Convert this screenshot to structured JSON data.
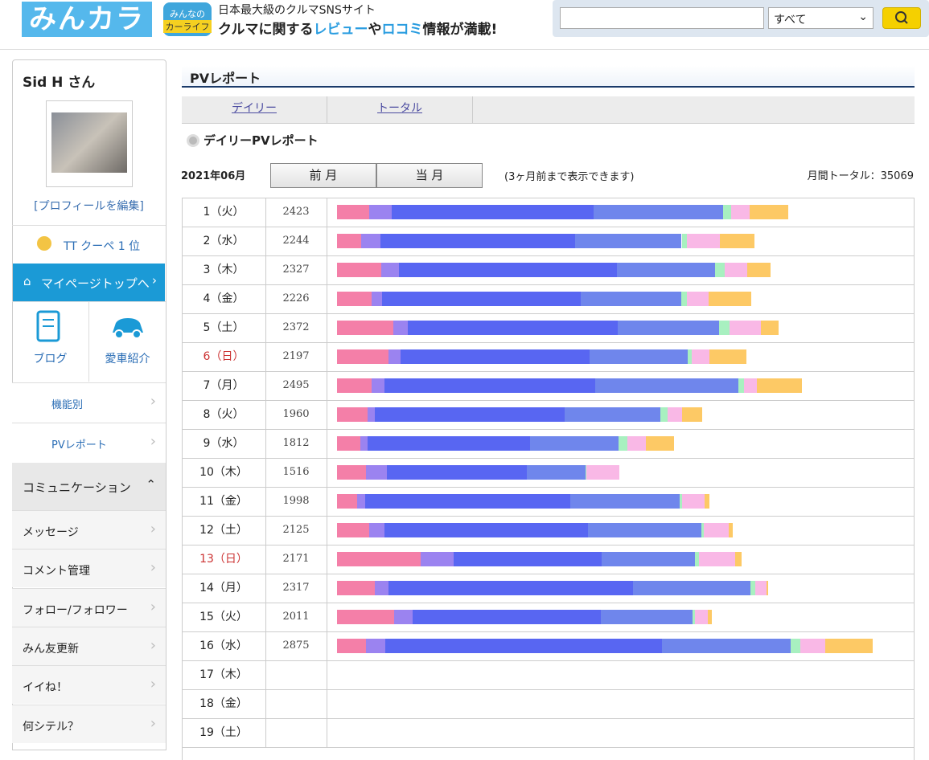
{
  "header": {
    "logo": "みんカラ",
    "badge": [
      "みんなの",
      "カーライフ"
    ],
    "tagline": "日本最大級のクルマSNSサイト",
    "slogan": [
      {
        "text": "クルマに関する",
        "color": "#222"
      },
      {
        "text": "レビュー",
        "color": "#2a9de0"
      },
      {
        "text": "や",
        "color": "#222"
      },
      {
        "text": "ロコミ",
        "color": "#2a9de0"
      },
      {
        "text": "情報が満載!",
        "color": "#222"
      }
    ],
    "search_option": "すべて"
  },
  "sidebar": {
    "user": "Sid H さん",
    "edit_profile": "[プロフィールを編集]",
    "ranking": "TT クーペ 1 位",
    "mypage": "マイページトップへ",
    "tiles": [
      "ブログ",
      "愛車紹介"
    ],
    "menu": [
      "機能別",
      "PVレポート"
    ],
    "section": "コミュニケーション",
    "items": [
      "メッセージ",
      "コメント管理",
      "フォロー/フォロワー",
      "みん友更新",
      "イイね！",
      "何シテル？"
    ]
  },
  "main": {
    "title": "PVレポート",
    "tabs": [
      "デイリー",
      "トータル"
    ],
    "subtitle": "デイリーPVレポート",
    "month": "2021年06月",
    "buttons": [
      "前 月",
      "当 月"
    ],
    "note": "(3ヶ月前まで表示できます)",
    "total_label": "月間トータル：",
    "total": 35069,
    "segment_colors": [
      "#f47fa8",
      "#9b83f0",
      "#5866f2",
      "#6f86ec",
      "#a8f0c0",
      "#f9b8e6",
      "#fdc965"
    ],
    "rows": [
      {
        "day": "1（火）",
        "pv": 2423,
        "segments": [
          172,
          120,
          1088,
          692,
          43,
          103,
          205
        ]
      },
      {
        "day": "2（水）",
        "pv": 2244,
        "segments": [
          130,
          104,
          1046,
          571,
          30,
          177,
          186
        ]
      },
      {
        "day": "3（木）",
        "pv": 2327,
        "segments": [
          237,
          95,
          1170,
          527,
          52,
          121,
          125
        ]
      },
      {
        "day": "4（金）",
        "pv": 2226,
        "segments": [
          187,
          57,
          1065,
          539,
          30,
          117,
          231
        ]
      },
      {
        "day": "5（土）",
        "pv": 2372,
        "segments": [
          302,
          78,
          1128,
          544,
          56,
          168,
          96
        ]
      },
      {
        "day": "6（日）",
        "pv": 2197,
        "segments": [
          276,
          65,
          1014,
          527,
          22,
          95,
          198
        ]
      },
      {
        "day": "7（月）",
        "pv": 2495,
        "segments": [
          186,
          69,
          1131,
          768,
          30,
          73,
          238
        ]
      },
      {
        "day": "8（火）",
        "pv": 1960,
        "segments": [
          164,
          39,
          1021,
          511,
          39,
          78,
          108
        ]
      },
      {
        "day": "9（水）",
        "pv": 1812,
        "segments": [
          126,
          39,
          873,
          474,
          48,
          100,
          152
        ]
      },
      {
        "day": "10（木）",
        "pv": 1516,
        "segments": [
          156,
          113,
          752,
          313,
          4,
          178,
          0
        ]
      },
      {
        "day": "11（金）",
        "pv": 1998,
        "segments": [
          108,
          43,
          1100,
          591,
          9,
          125,
          22
        ]
      },
      {
        "day": "12（土）",
        "pv": 2125,
        "segments": [
          173,
          82,
          1091,
          610,
          13,
          134,
          22
        ]
      },
      {
        "day": "13（日）",
        "pv": 2171,
        "segments": [
          449,
          177,
          794,
          501,
          22,
          194,
          34
        ]
      },
      {
        "day": "14（月）",
        "pv": 2317,
        "segments": [
          203,
          73,
          1314,
          631,
          26,
          61,
          9
        ]
      },
      {
        "day": "15（火）",
        "pv": 2011,
        "segments": [
          308,
          100,
          1008,
          495,
          13,
          69,
          18
        ]
      },
      {
        "day": "16（水）",
        "pv": 2875,
        "segments": [
          155,
          104,
          1485,
          691,
          52,
          134,
          254
        ]
      },
      {
        "day": "17（木）",
        "pv": null,
        "segments": []
      },
      {
        "day": "18（金）",
        "pv": null,
        "segments": []
      },
      {
        "day": "19（土）",
        "pv": null,
        "segments": []
      }
    ]
  }
}
